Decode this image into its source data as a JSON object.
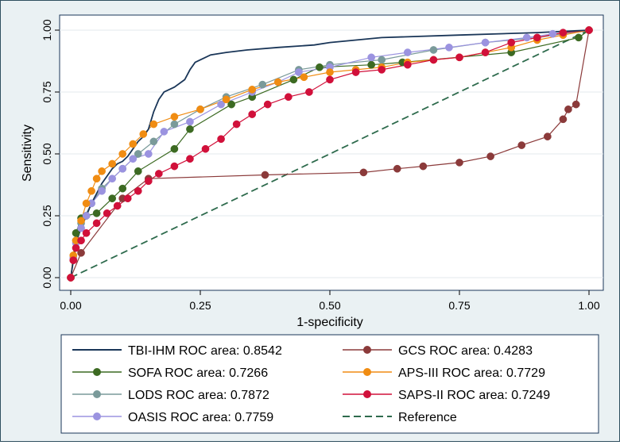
{
  "chart_data": {
    "type": "line",
    "title": "",
    "xlabel": "1-specificity",
    "ylabel": "Sensitivity",
    "xlim": [
      0,
      1
    ],
    "ylim": [
      0,
      1
    ],
    "xticks": [
      "0.00",
      "0.25",
      "0.50",
      "0.75",
      "1.00"
    ],
    "yticks": [
      "0.00",
      "0.25",
      "0.50",
      "0.75",
      "1.00"
    ],
    "legend_position": "bottom",
    "series": [
      {
        "name": "TBI-IHM ROC area: 0.8542",
        "color": "#1a3658",
        "markers": false,
        "style": "solid",
        "points": [
          [
            0,
            0
          ],
          [
            0.005,
            0.07
          ],
          [
            0.01,
            0.14
          ],
          [
            0.02,
            0.2
          ],
          [
            0.03,
            0.25
          ],
          [
            0.04,
            0.3
          ],
          [
            0.05,
            0.34
          ],
          [
            0.06,
            0.38
          ],
          [
            0.07,
            0.41
          ],
          [
            0.08,
            0.44
          ],
          [
            0.09,
            0.46
          ],
          [
            0.1,
            0.47
          ],
          [
            0.11,
            0.49
          ],
          [
            0.12,
            0.52
          ],
          [
            0.13,
            0.55
          ],
          [
            0.14,
            0.57
          ],
          [
            0.15,
            0.6
          ],
          [
            0.16,
            0.67
          ],
          [
            0.17,
            0.72
          ],
          [
            0.18,
            0.75
          ],
          [
            0.2,
            0.77
          ],
          [
            0.22,
            0.8
          ],
          [
            0.23,
            0.84
          ],
          [
            0.24,
            0.87
          ],
          [
            0.25,
            0.88
          ],
          [
            0.27,
            0.9
          ],
          [
            0.3,
            0.91
          ],
          [
            0.34,
            0.92
          ],
          [
            0.4,
            0.93
          ],
          [
            0.47,
            0.94
          ],
          [
            0.5,
            0.95
          ],
          [
            0.6,
            0.97
          ],
          [
            0.75,
            0.98
          ],
          [
            0.9,
            0.99
          ],
          [
            1,
            1
          ]
        ]
      },
      {
        "name": "SOFA ROC area: 0.7266",
        "color": "#3c6a22",
        "markers": true,
        "style": "solid",
        "points": [
          [
            0,
            0
          ],
          [
            0.01,
            0.18
          ],
          [
            0.02,
            0.24
          ],
          [
            0.03,
            0.25
          ],
          [
            0.05,
            0.26
          ],
          [
            0.08,
            0.32
          ],
          [
            0.1,
            0.36
          ],
          [
            0.13,
            0.43
          ],
          [
            0.2,
            0.52
          ],
          [
            0.23,
            0.6
          ],
          [
            0.31,
            0.7
          ],
          [
            0.35,
            0.73
          ],
          [
            0.43,
            0.8
          ],
          [
            0.48,
            0.85
          ],
          [
            0.58,
            0.86
          ],
          [
            0.64,
            0.87
          ],
          [
            0.85,
            0.91
          ],
          [
            0.98,
            0.97
          ],
          [
            1,
            1
          ]
        ]
      },
      {
        "name": "LODS ROC area: 0.7872",
        "color": "#7a9a9a",
        "markers": true,
        "style": "solid",
        "points": [
          [
            0,
            0
          ],
          [
            0.01,
            0.15
          ],
          [
            0.02,
            0.22
          ],
          [
            0.04,
            0.3
          ],
          [
            0.06,
            0.36
          ],
          [
            0.1,
            0.44
          ],
          [
            0.13,
            0.5
          ],
          [
            0.16,
            0.55
          ],
          [
            0.2,
            0.62
          ],
          [
            0.25,
            0.68
          ],
          [
            0.3,
            0.73
          ],
          [
            0.37,
            0.78
          ],
          [
            0.44,
            0.84
          ],
          [
            0.5,
            0.86
          ],
          [
            0.6,
            0.88
          ],
          [
            0.7,
            0.92
          ],
          [
            0.8,
            0.95
          ],
          [
            0.9,
            0.97
          ],
          [
            1,
            1
          ]
        ]
      },
      {
        "name": "OASIS ROC area: 0.7759",
        "color": "#9b93e0",
        "markers": true,
        "style": "solid",
        "points": [
          [
            0,
            0
          ],
          [
            0.005,
            0.08
          ],
          [
            0.01,
            0.14
          ],
          [
            0.02,
            0.2
          ],
          [
            0.03,
            0.25
          ],
          [
            0.04,
            0.3
          ],
          [
            0.06,
            0.35
          ],
          [
            0.08,
            0.4
          ],
          [
            0.1,
            0.44
          ],
          [
            0.12,
            0.48
          ],
          [
            0.15,
            0.5
          ],
          [
            0.18,
            0.59
          ],
          [
            0.23,
            0.63
          ],
          [
            0.29,
            0.7
          ],
          [
            0.35,
            0.75
          ],
          [
            0.4,
            0.79
          ],
          [
            0.44,
            0.83
          ],
          [
            0.5,
            0.85
          ],
          [
            0.58,
            0.89
          ],
          [
            0.65,
            0.91
          ],
          [
            0.73,
            0.93
          ],
          [
            0.8,
            0.95
          ],
          [
            0.88,
            0.97
          ],
          [
            0.93,
            0.985
          ],
          [
            1,
            1
          ]
        ]
      },
      {
        "name": "GCS ROC area: 0.4283",
        "color": "#8b3a3a",
        "markers": true,
        "style": "solid",
        "points": [
          [
            0,
            0
          ],
          [
            0.02,
            0.1
          ],
          [
            0.1,
            0.32
          ],
          [
            0.15,
            0.4
          ],
          [
            0.375,
            0.415
          ],
          [
            0.565,
            0.425
          ],
          [
            0.63,
            0.44
          ],
          [
            0.68,
            0.45
          ],
          [
            0.75,
            0.465
          ],
          [
            0.81,
            0.49
          ],
          [
            0.87,
            0.535
          ],
          [
            0.92,
            0.57
          ],
          [
            0.95,
            0.64
          ],
          [
            0.96,
            0.68
          ],
          [
            0.975,
            0.7
          ],
          [
            1,
            1
          ]
        ]
      },
      {
        "name": "APS-III ROC area: 0.7729",
        "color": "#f08c12",
        "markers": true,
        "style": "solid",
        "points": [
          [
            0,
            0
          ],
          [
            0.005,
            0.09
          ],
          [
            0.01,
            0.15
          ],
          [
            0.02,
            0.23
          ],
          [
            0.03,
            0.3
          ],
          [
            0.04,
            0.35
          ],
          [
            0.05,
            0.4
          ],
          [
            0.06,
            0.43
          ],
          [
            0.08,
            0.46
          ],
          [
            0.1,
            0.5
          ],
          [
            0.12,
            0.54
          ],
          [
            0.14,
            0.58
          ],
          [
            0.16,
            0.62
          ],
          [
            0.2,
            0.65
          ],
          [
            0.25,
            0.68
          ],
          [
            0.3,
            0.72
          ],
          [
            0.35,
            0.76
          ],
          [
            0.4,
            0.79
          ],
          [
            0.45,
            0.81
          ],
          [
            0.5,
            0.83
          ],
          [
            0.55,
            0.84
          ],
          [
            0.6,
            0.85
          ],
          [
            0.65,
            0.87
          ],
          [
            0.7,
            0.88
          ],
          [
            0.75,
            0.89
          ],
          [
            0.8,
            0.91
          ],
          [
            0.85,
            0.93
          ],
          [
            0.9,
            0.96
          ],
          [
            0.95,
            0.98
          ],
          [
            1,
            1
          ]
        ]
      },
      {
        "name": "SAPS-II ROC area: 0.7249",
        "color": "#d1103a",
        "markers": true,
        "style": "solid",
        "points": [
          [
            0,
            0
          ],
          [
            0.005,
            0.07
          ],
          [
            0.01,
            0.12
          ],
          [
            0.02,
            0.15
          ],
          [
            0.03,
            0.18
          ],
          [
            0.05,
            0.22
          ],
          [
            0.07,
            0.26
          ],
          [
            0.09,
            0.29
          ],
          [
            0.11,
            0.32
          ],
          [
            0.13,
            0.35
          ],
          [
            0.15,
            0.39
          ],
          [
            0.17,
            0.42
          ],
          [
            0.2,
            0.45
          ],
          [
            0.23,
            0.48
          ],
          [
            0.26,
            0.52
          ],
          [
            0.29,
            0.56
          ],
          [
            0.32,
            0.62
          ],
          [
            0.35,
            0.66
          ],
          [
            0.38,
            0.7
          ],
          [
            0.42,
            0.73
          ],
          [
            0.46,
            0.75
          ],
          [
            0.5,
            0.8
          ],
          [
            0.55,
            0.83
          ],
          [
            0.6,
            0.84
          ],
          [
            0.65,
            0.86
          ],
          [
            0.7,
            0.88
          ],
          [
            0.75,
            0.89
          ],
          [
            0.8,
            0.91
          ],
          [
            0.85,
            0.95
          ],
          [
            0.9,
            0.97
          ],
          [
            0.95,
            0.99
          ],
          [
            1,
            1
          ]
        ]
      },
      {
        "name": "Reference",
        "color": "#2e6b4d",
        "markers": false,
        "style": "dashed",
        "points": [
          [
            0,
            0
          ],
          [
            1,
            1
          ]
        ]
      }
    ]
  }
}
